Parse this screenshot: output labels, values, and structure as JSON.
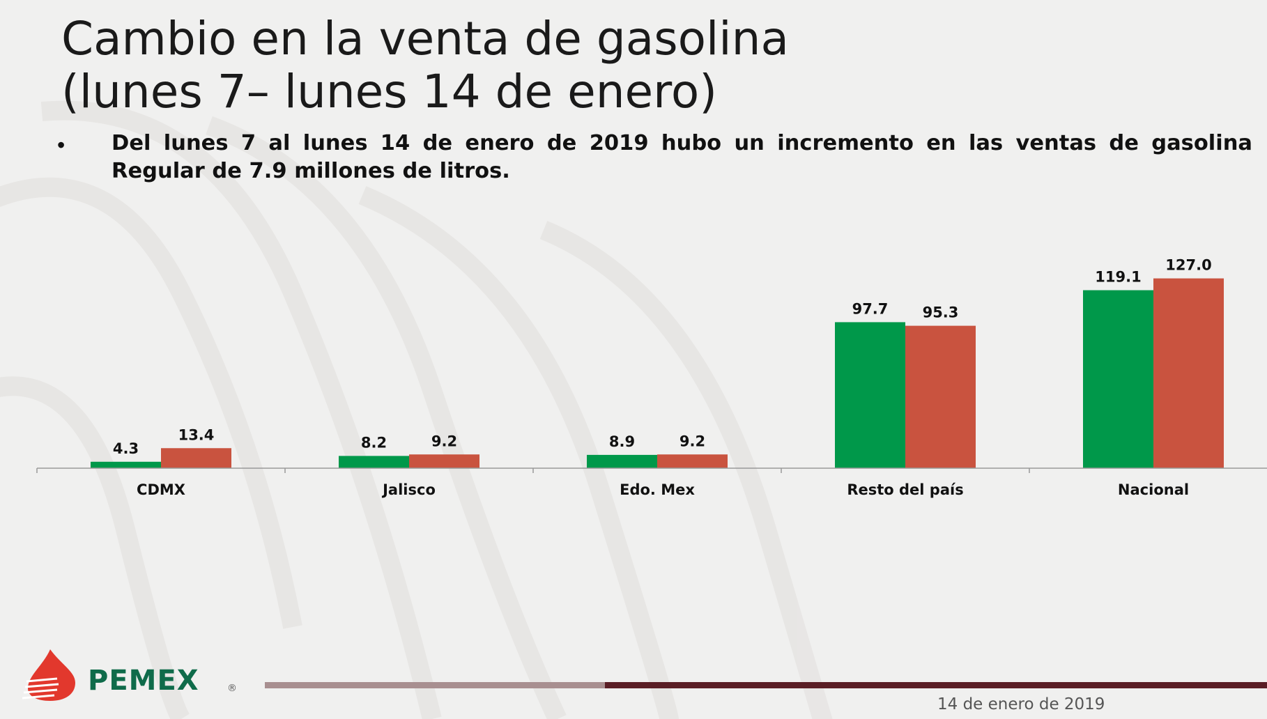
{
  "title_line1": "Cambio en la venta de gasolina",
  "title_line2": "(lunes 7– lunes 14 de enero)",
  "bullet_text": "Del lunes 7 al lunes 14 de enero de 2019 hubo un incremento en las ventas de gasolina Regular de 7.9 millones de litros.",
  "footer": {
    "logo_text": "PEMEX",
    "date": "14 de enero de 2019"
  },
  "colors": {
    "green": "#00984a",
    "red": "#c9533f",
    "bar_light": "#a88f90",
    "bar_dark": "#5a1e25"
  },
  "chart_data": {
    "type": "bar",
    "categories": [
      "CDMX",
      "Jalisco",
      "Edo. Mex",
      "Resto del país",
      "Nacional"
    ],
    "series": [
      {
        "values": [
          4.3,
          8.2,
          8.9,
          97.7,
          119.1
        ],
        "color": "#00984a"
      },
      {
        "values": [
          13.4,
          9.2,
          9.2,
          95.3,
          127.0
        ],
        "color": "#c9533f"
      }
    ],
    "data_labels": true,
    "grid": false,
    "ylim": [
      0,
      127
    ]
  }
}
